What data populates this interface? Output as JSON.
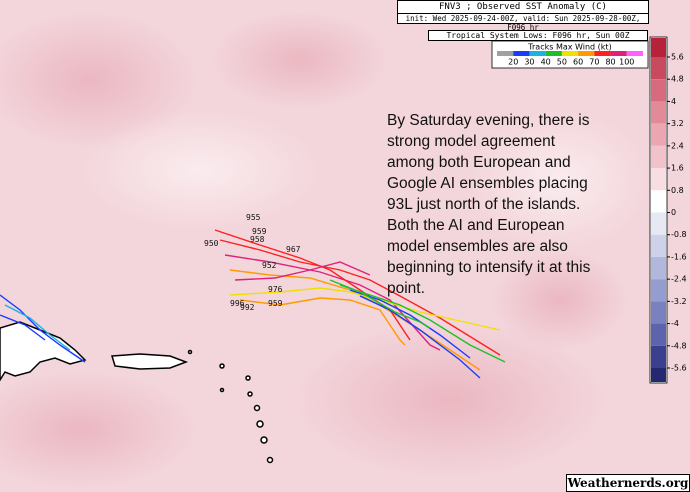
{
  "header": {
    "title": "FNV3 ; Observed SST Anomaly (C)",
    "subtitle": "init: Wed 2025-09-24-00Z, valid: Sun 2025-09-28-00Z, F096 hr",
    "lows": "Tropical System Lows: F096 hr, Sun 00Z"
  },
  "wind_scale": {
    "title": "Tracks Max Wind (kt)",
    "labels": [
      20,
      30,
      40,
      50,
      60,
      70,
      80,
      100
    ],
    "colors": [
      "#a0a0a0",
      "#1a3cff",
      "#19b4e0",
      "#1fbf2a",
      "#f0e000",
      "#ff9a00",
      "#ff2020",
      "#e0207a",
      "#ff60ff"
    ]
  },
  "colorbar": {
    "ticks": [
      5.6,
      4.8,
      4,
      3.2,
      2.4,
      1.6,
      0.8,
      0,
      -0.8,
      -1.6,
      -2.4,
      -3.2,
      -4,
      -4.8,
      -5.6
    ],
    "colors": [
      "#b8213a",
      "#c94a5e",
      "#d76a7c",
      "#e28a98",
      "#eba6b1",
      "#f2c2ca",
      "#f8dde2",
      "#ffffff",
      "#e6e8f4",
      "#cdd1ea",
      "#b2b7de",
      "#959cd0",
      "#7a80c0",
      "#5d63ad",
      "#3c3f8e",
      "#242870"
    ]
  },
  "annotation": [
    "By Saturday evening, there is",
    "strong model agreement",
    "among both European and",
    "Google AI ensembles placing",
    "93L just north of the islands.",
    "Both the AI and European",
    "model ensembles are also",
    "beginning to intensify it at this",
    "point."
  ],
  "pressure_labels": [
    "955",
    "959",
    "958",
    "967",
    "950",
    "952",
    "976",
    "959",
    "992",
    "996"
  ],
  "credit": "Weathernerds.org"
}
